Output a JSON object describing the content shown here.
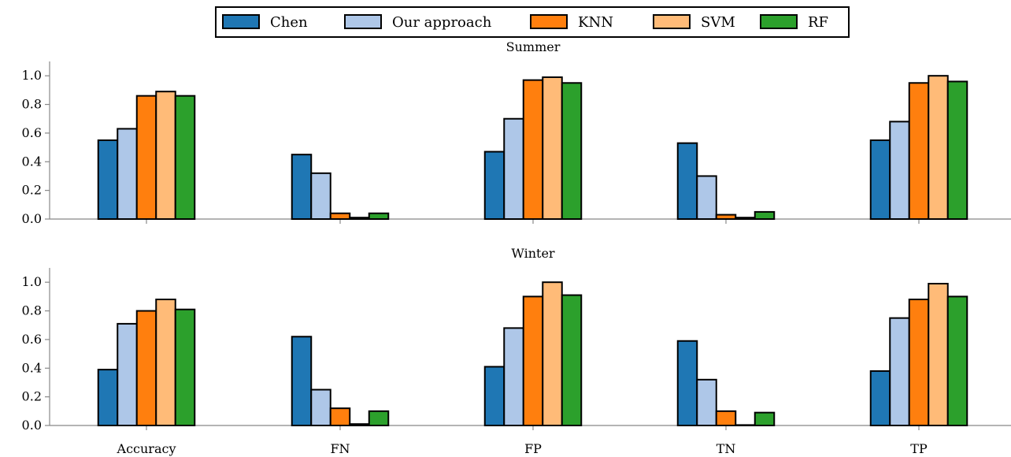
{
  "chart_data": {
    "type": "bar",
    "legend": {
      "placement": "top-center",
      "entries": [
        "Chen",
        "Our approach",
        "KNN",
        "SVM",
        "RF"
      ]
    },
    "series_colors": [
      "#1f77b4",
      "#aec7e8",
      "#ff7f0e",
      "#ffbb78",
      "#2ca02c"
    ],
    "categories": [
      "Accuracy",
      "FN",
      "FP",
      "TN",
      "TP"
    ],
    "panels": [
      {
        "title": "Summer",
        "ylim": [
          0,
          1.1
        ],
        "yticks": [
          "0.0",
          "0.2",
          "0.4",
          "0.6",
          "0.8",
          "1.0"
        ],
        "series": [
          {
            "name": "Chen",
            "values": [
              0.55,
              0.45,
              0.47,
              0.53,
              0.55
            ]
          },
          {
            "name": "Our approach",
            "values": [
              0.63,
              0.32,
              0.7,
              0.3,
              0.68
            ]
          },
          {
            "name": "KNN",
            "values": [
              0.86,
              0.04,
              0.97,
              0.03,
              0.95
            ]
          },
          {
            "name": "SVM",
            "values": [
              0.89,
              0.01,
              0.99,
              0.01,
              1.0
            ]
          },
          {
            "name": "RF",
            "values": [
              0.86,
              0.04,
              0.95,
              0.05,
              0.96
            ]
          }
        ]
      },
      {
        "title": "Winter",
        "ylim": [
          0,
          1.1
        ],
        "yticks": [
          "0.0",
          "0.2",
          "0.4",
          "0.6",
          "0.8",
          "1.0"
        ],
        "series": [
          {
            "name": "Chen",
            "values": [
              0.39,
              0.62,
              0.41,
              0.59,
              0.38
            ]
          },
          {
            "name": "Our approach",
            "values": [
              0.71,
              0.25,
              0.68,
              0.32,
              0.75
            ]
          },
          {
            "name": "KNN",
            "values": [
              0.8,
              0.12,
              0.9,
              0.1,
              0.88
            ]
          },
          {
            "name": "SVM",
            "values": [
              0.88,
              0.01,
              1.0,
              0.0,
              0.99
            ]
          },
          {
            "name": "RF",
            "values": [
              0.81,
              0.1,
              0.91,
              0.09,
              0.9
            ]
          }
        ]
      }
    ]
  }
}
